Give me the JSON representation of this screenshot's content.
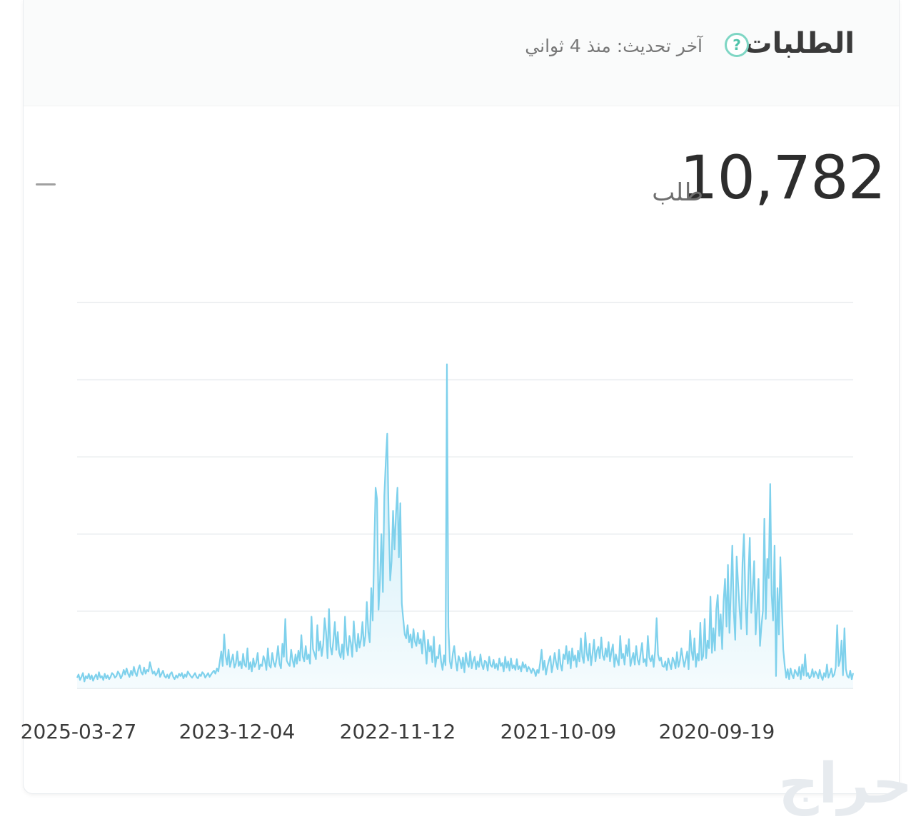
{
  "header": {
    "title": "الطلبات",
    "help_icon": "question-circle-icon",
    "updated_label": "آخر تحديث: منذ 4 ثواني"
  },
  "summary": {
    "value": "10,782",
    "unit": "طلب"
  },
  "watermark": "حراج",
  "colors": {
    "accent": "#7ed6c4",
    "line": "#7fd1ec",
    "fill": "#d9f2fb",
    "grid": "#eef0f2"
  },
  "chart_data": {
    "type": "area",
    "title": "",
    "xlabel": "",
    "ylabel": "",
    "x_direction": "newest-left",
    "x_range": [
      "2025-03-27",
      "2019-11-01"
    ],
    "x_ticks": [
      "2025-03-27",
      "2023-12-04",
      "2022-11-12",
      "2021-10-09",
      "2020-09-19"
    ],
    "y_ticks_shown": false,
    "y_gridlines": 6,
    "ylim": [
      0,
      50
    ],
    "grid": true,
    "series": [
      {
        "values": [
          1.4,
          1.8,
          1.1,
          1.5,
          2.0,
          0.9,
          1.6,
          1.3,
          1.9,
          1.2,
          1.7,
          1.0,
          1.5,
          1.8,
          1.2,
          2.1,
          1.4,
          1.6,
          1.1,
          1.9,
          1.3,
          1.7,
          1.2,
          1.5,
          2.0,
          1.8,
          1.4,
          1.6,
          2.2,
          1.9,
          1.3,
          1.7,
          2.4,
          1.8,
          2.6,
          1.9,
          1.5,
          2.3,
          1.7,
          2.8,
          2.0,
          1.6,
          2.5,
          3.0,
          2.1,
          1.8,
          2.7,
          1.9,
          2.4,
          2.2,
          3.4,
          2.6,
          1.9,
          2.2,
          1.7,
          2.0,
          2.6,
          1.5,
          1.9,
          2.3,
          1.6,
          1.4,
          1.8,
          1.3,
          1.9,
          2.1,
          1.5,
          1.2,
          1.7,
          1.4,
          1.9,
          1.6,
          2.0,
          1.3,
          1.8,
          1.5,
          2.2,
          1.9,
          1.6,
          1.4,
          1.7,
          2.0,
          1.5,
          1.3,
          1.8,
          1.6,
          2.1,
          1.9,
          1.4,
          1.7,
          2.0,
          1.5,
          1.8,
          2.1,
          2.3,
          1.9,
          2.6,
          2.2,
          3.5,
          4.8,
          2.9,
          7.0,
          4.2,
          3.1,
          5.0,
          2.8,
          3.6,
          4.4,
          2.7,
          3.2,
          4.8,
          2.9,
          3.5,
          2.6,
          4.5,
          3.1,
          2.8,
          5.2,
          2.5,
          3.4,
          2.2,
          3.9,
          2.8,
          3.3,
          4.6,
          2.5,
          3.1,
          2.9,
          4.2,
          3.6,
          2.4,
          5.2,
          3.0,
          2.7,
          4.6,
          3.4,
          2.8,
          3.9,
          5.5,
          3.2,
          2.6,
          5.8,
          4.1,
          9.0,
          3.6,
          3.2,
          2.9,
          5.0,
          3.7,
          2.8,
          4.4,
          3.2,
          4.9,
          3.6,
          6.9,
          4.1,
          3.5,
          5.5,
          3.8,
          4.4,
          3.2,
          9.3,
          5.1,
          4.5,
          3.8,
          8.2,
          4.9,
          6.1,
          4.2,
          5.7,
          9.1,
          7.3,
          3.9,
          10.3,
          5.4,
          4.4,
          6.2,
          8.6,
          5.0,
          7.3,
          4.6,
          4.0,
          5.7,
          3.8,
          9.3,
          5.5,
          4.3,
          6.8,
          5.9,
          4.1,
          8.7,
          6.0,
          4.8,
          7.1,
          5.3,
          6.4,
          8.6,
          5.5,
          6.8,
          11.2,
          7.3,
          6.0,
          13.0,
          8.8,
          17.5,
          26.0,
          24.5,
          10.2,
          14.0,
          20.0,
          12.5,
          25.0,
          29.5,
          33.0,
          22.0,
          14.0,
          16.5,
          23.0,
          18.0,
          22.5,
          26.0,
          17.0,
          24.0,
          11.0,
          9.0,
          7.0,
          6.5,
          8.2,
          6.0,
          7.0,
          5.3,
          7.7,
          6.1,
          5.5,
          7.2,
          5.8,
          6.4,
          4.5,
          7.5,
          5.7,
          3.2,
          6.3,
          4.8,
          5.5,
          3.4,
          6.7,
          2.8,
          4.1,
          3.9,
          5.6,
          3.5,
          2.4,
          4.3,
          3.0,
          42.0,
          8.0,
          3.5,
          2.6,
          4.5,
          5.5,
          3.6,
          2.3,
          4.2,
          3.6,
          2.6,
          4.0,
          2.1,
          4.6,
          3.3,
          2.8,
          4.8,
          2.6,
          3.5,
          4.1,
          2.5,
          3.5,
          2.8,
          4.4,
          3.1,
          2.5,
          3.6,
          3.4,
          2.3,
          4.1,
          3.0,
          2.8,
          3.7,
          2.6,
          3.2,
          2.4,
          3.9,
          2.9,
          3.3,
          2.2,
          4.1,
          2.7,
          3.5,
          2.3,
          3.9,
          2.6,
          3.0,
          2.4,
          3.8,
          2.5,
          2.9,
          2.2,
          3.4,
          2.7,
          3.1,
          2.2,
          2.8,
          2.5,
          2.0,
          2.6,
          2.3,
          1.6,
          2.4,
          2.0,
          3.3,
          5.0,
          2.4,
          3.6,
          1.8,
          2.8,
          3.6,
          4.2,
          2.1,
          3.2,
          4.6,
          3.3,
          2.5,
          5.0,
          3.1,
          2.3,
          4.4,
          3.8,
          5.5,
          3.2,
          4.8,
          2.6,
          5.2,
          3.6,
          4.3,
          2.8,
          4.9,
          3.5,
          6.5,
          4.1,
          3.3,
          7.2,
          4.6,
          3.6,
          5.8,
          3.0,
          4.5,
          6.3,
          3.5,
          4.9,
          5.4,
          3.9,
          6.6,
          4.3,
          3.7,
          5.2,
          4.1,
          6.0,
          3.5,
          4.8,
          5.7,
          2.8,
          4.4,
          3.6,
          3.0,
          6.8,
          3.9,
          4.5,
          3.1,
          5.6,
          4.2,
          6.4,
          2.9,
          3.8,
          4.6,
          3.1,
          5.5,
          3.7,
          3.1,
          4.5,
          5.9,
          3.4,
          3.8,
          2.9,
          6.8,
          4.0,
          3.5,
          4.3,
          2.8,
          4.9,
          9.1,
          4.4,
          3.6,
          4.0,
          2.9,
          2.8,
          3.5,
          2.4,
          3.9,
          3.2,
          2.5,
          4.0,
          3.5,
          2.6,
          4.7,
          2.8,
          3.6,
          5.2,
          3.9,
          2.8,
          3.8,
          4.8,
          2.5,
          7.5,
          4.9,
          3.7,
          6.5,
          2.8,
          4.5,
          3.6,
          8.5,
          3.7,
          4.2,
          9.0,
          3.9,
          6.2,
          5.2,
          11.9,
          4.6,
          7.8,
          4.9,
          10.3,
          12.1,
          6.8,
          9.6,
          5.1,
          11.3,
          14.2,
          8.0,
          16.0,
          7.2,
          12.7,
          18.5,
          9.9,
          6.3,
          17.1,
          13.5,
          10.2,
          7.7,
          16.3,
          20.0,
          11.5,
          7.0,
          14.6,
          19.5,
          9.8,
          12.9,
          16.5,
          7.0,
          10.2,
          14.2,
          5.5,
          8.1,
          10.1,
          22.0,
          9.0,
          16.8,
          14.3,
          26.5,
          12.2,
          8.8,
          18.5,
          1.6,
          13.0,
          7.0,
          17.0,
          10.5,
          5.0,
          3.0,
          1.4,
          2.5,
          1.2,
          2.6,
          1.8,
          1.3,
          2.4,
          2.0,
          1.6,
          2.8,
          1.2,
          3.1,
          1.7,
          4.4,
          1.6,
          2.0,
          1.3,
          1.6,
          2.5,
          1.5,
          2.2,
          1.9,
          1.3,
          2.4,
          1.6,
          1.1,
          2.0,
          1.5,
          3.1,
          1.4,
          1.9,
          2.6,
          1.5,
          1.8,
          2.7,
          8.2,
          2.9,
          3.6,
          6.2,
          1.7,
          7.8,
          2.5,
          1.6,
          1.4,
          2.3,
          1.2,
          2.0
        ]
      }
    ]
  }
}
